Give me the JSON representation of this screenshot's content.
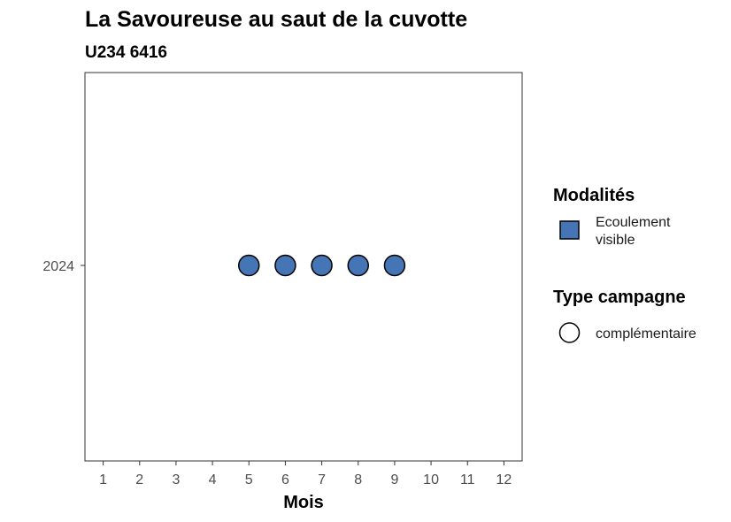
{
  "chart_data": {
    "type": "scatter",
    "title": "La Savoureuse au saut de la cuvotte",
    "subtitle": "U234 6416",
    "xlabel": "Mois",
    "ylabel": "",
    "x_ticks": [
      "1",
      "2",
      "3",
      "4",
      "5",
      "6",
      "7",
      "8",
      "9",
      "10",
      "11",
      "12"
    ],
    "xlim": [
      0.5,
      12.5
    ],
    "y_categories": [
      "2024"
    ],
    "grid": false,
    "legend_position": "right",
    "series": [
      {
        "modalite": "Ecoulement visible",
        "type_campagne": "complémentaire",
        "color": "#4575b4",
        "points": [
          {
            "x": 5,
            "y": "2024"
          },
          {
            "x": 6,
            "y": "2024"
          },
          {
            "x": 7,
            "y": "2024"
          },
          {
            "x": 8,
            "y": "2024"
          },
          {
            "x": 9,
            "y": "2024"
          }
        ]
      }
    ],
    "legend": {
      "modalites_title": "Modalités",
      "modalites_items": [
        {
          "label_lines": [
            "Ecoulement",
            "visible"
          ],
          "color": "#4575b4",
          "shape": "square"
        }
      ],
      "type_campagne_title": "Type campagne",
      "type_campagne_items": [
        {
          "label": "complémentaire",
          "shape": "circle"
        }
      ]
    }
  }
}
